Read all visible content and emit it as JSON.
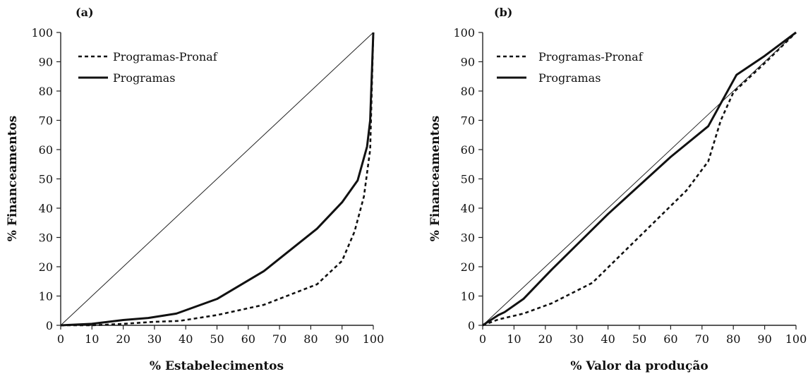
{
  "chart_data": [
    {
      "type": "line",
      "panel_label": "(a)",
      "xlabel": "% Estabelecimentos",
      "ylabel": "% Financeamentos",
      "xlim": [
        0,
        100
      ],
      "ylim": [
        0,
        100
      ],
      "xticks": [
        0,
        10,
        20,
        30,
        40,
        50,
        60,
        70,
        80,
        90,
        100
      ],
      "yticks": [
        0,
        10,
        20,
        30,
        40,
        50,
        60,
        70,
        80,
        90,
        100
      ],
      "grid": false,
      "legend_position": "top-left",
      "reference_line": {
        "x": [
          0,
          100
        ],
        "y": [
          0,
          100
        ]
      },
      "series": [
        {
          "name": "Programas-Pronaf",
          "style": "dashed",
          "x": [
            0,
            10,
            20,
            30,
            38,
            50,
            65,
            82,
            90,
            94,
            97,
            99,
            100
          ],
          "y": [
            0,
            0,
            0.5,
            1.2,
            1.5,
            3.5,
            7,
            14,
            22,
            32,
            44,
            60,
            100
          ]
        },
        {
          "name": "Programas",
          "style": "solid",
          "x": [
            0,
            10,
            20,
            28,
            37,
            50,
            65,
            82,
            90,
            95,
            98,
            99,
            100
          ],
          "y": [
            0,
            0.5,
            1.8,
            2.5,
            4,
            9,
            18.5,
            33,
            42,
            49.5,
            61,
            70,
            100
          ]
        }
      ]
    },
    {
      "type": "line",
      "panel_label": "(b)",
      "xlabel": "% Valor da produção",
      "ylabel": "% Financeamentos",
      "xlim": [
        0,
        100
      ],
      "ylim": [
        0,
        100
      ],
      "xticks": [
        0,
        10,
        20,
        30,
        40,
        50,
        60,
        70,
        80,
        90,
        100
      ],
      "yticks": [
        0,
        10,
        20,
        30,
        40,
        50,
        60,
        70,
        80,
        90,
        100
      ],
      "grid": false,
      "legend_position": "top-left",
      "reference_line": {
        "x": [
          0,
          100
        ],
        "y": [
          0,
          100
        ]
      },
      "series": [
        {
          "name": "Programas-Pronaf",
          "style": "dashed",
          "x": [
            0,
            5,
            13,
            22,
            35,
            45,
            55,
            65,
            72,
            76,
            80,
            90,
            100
          ],
          "y": [
            0,
            2,
            4,
            7.5,
            14.5,
            25,
            35.5,
            46,
            56,
            70,
            79.5,
            89.5,
            100
          ]
        },
        {
          "name": "Programas",
          "style": "solid",
          "x": [
            0,
            5,
            7,
            13,
            22,
            40,
            60,
            72,
            81,
            90,
            100
          ],
          "y": [
            0,
            3.5,
            4.5,
            9,
            19,
            38,
            57.5,
            68,
            85.5,
            92,
            100
          ]
        }
      ]
    }
  ]
}
